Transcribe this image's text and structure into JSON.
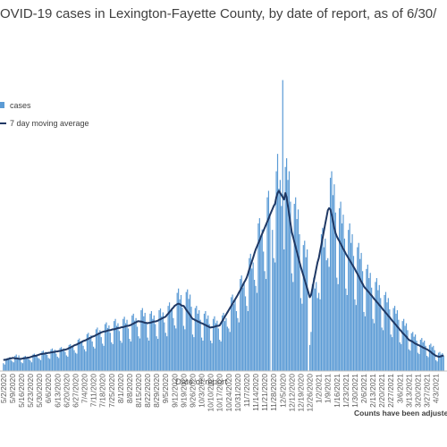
{
  "chart_data": {
    "type": "bar",
    "title": "OVID-19 cases in Lexington-Fayette County, by date of report, as of 6/30/",
    "x_label": "Date of report",
    "note": "Counts have been adjuste",
    "ylim": [
      0,
      700
    ],
    "categories": [
      "5/2/2020",
      null,
      null,
      null,
      null,
      null,
      null,
      "5/9/2020",
      null,
      null,
      null,
      null,
      null,
      null,
      "5/16/2020",
      null,
      null,
      null,
      null,
      null,
      null,
      "5/23/2020",
      null,
      null,
      null,
      null,
      null,
      null,
      "5/30/2020",
      null,
      null,
      null,
      null,
      null,
      null,
      "6/6/2020",
      null,
      null,
      null,
      null,
      null,
      null,
      "6/13/2020",
      null,
      null,
      null,
      null,
      null,
      null,
      "6/20/2020",
      null,
      null,
      null,
      null,
      null,
      null,
      "6/27/2020",
      null,
      null,
      null,
      null,
      null,
      null,
      "7/4/2020",
      null,
      null,
      null,
      null,
      null,
      null,
      "7/11/2020",
      null,
      null,
      null,
      null,
      null,
      null,
      "7/18/2020",
      null,
      null,
      null,
      null,
      null,
      null,
      "7/25/2020",
      null,
      null,
      null,
      null,
      null,
      null,
      "8/1/2020",
      null,
      null,
      null,
      null,
      null,
      null,
      "8/8/2020",
      null,
      null,
      null,
      null,
      null,
      null,
      "8/15/2020",
      null,
      null,
      null,
      null,
      null,
      null,
      "8/22/2020",
      null,
      null,
      null,
      null,
      null,
      null,
      "8/29/2020",
      null,
      null,
      null,
      null,
      null,
      null,
      "9/5/2020",
      null,
      null,
      null,
      null,
      null,
      null,
      "9/12/2020",
      null,
      null,
      null,
      null,
      null,
      null,
      "9/19/2020",
      null,
      null,
      null,
      null,
      null,
      null,
      "9/26/2020",
      null,
      null,
      null,
      null,
      null,
      null,
      "10/3/2020",
      null,
      null,
      null,
      null,
      null,
      null,
      "10/10/2020",
      null,
      null,
      null,
      null,
      null,
      null,
      "10/17/2020",
      null,
      null,
      null,
      null,
      null,
      null,
      "10/24/2020",
      null,
      null,
      null,
      null,
      null,
      null,
      "10/31/2020",
      null,
      null,
      null,
      null,
      null,
      null,
      "11/7/2020",
      null,
      null,
      null,
      null,
      null,
      null,
      "11/14/2020",
      null,
      null,
      null,
      null,
      null,
      null,
      "11/21/2020",
      null,
      null,
      null,
      null,
      null,
      null,
      "11/28/2020",
      null,
      null,
      null,
      null,
      null,
      null,
      "12/5/2020",
      null,
      null,
      null,
      null,
      null,
      null,
      "12/12/2020",
      null,
      null,
      null,
      null,
      null,
      null,
      "12/19/2020",
      null,
      null,
      null,
      null,
      null,
      null,
      "12/26/2020",
      null,
      null,
      null,
      null,
      null,
      null,
      "1/2/2021",
      null,
      null,
      null,
      null,
      null,
      null,
      "1/9/2021",
      null,
      null,
      null,
      null,
      null,
      null,
      "1/16/2021",
      null,
      null,
      null,
      null,
      null,
      null,
      "1/23/2021",
      null,
      null,
      null,
      null,
      null,
      null,
      "1/30/2021",
      null,
      null,
      null,
      null,
      null,
      null,
      "2/6/2021",
      null,
      null,
      null,
      null,
      null,
      null,
      "2/13/2021",
      null,
      null,
      null,
      null,
      null,
      null,
      "2/20/2021",
      null,
      null,
      null,
      null,
      null,
      null,
      "2/27/2021",
      null,
      null,
      null,
      null,
      null,
      null,
      "3/6/2021",
      null,
      null,
      null,
      null,
      null,
      null,
      "3/13/2021",
      null,
      null,
      null,
      null,
      null,
      null,
      "3/20/2021",
      null,
      null,
      null,
      null,
      null,
      null,
      "3/27/2021",
      null,
      null,
      null,
      null,
      null,
      null,
      "4/3/2021",
      null,
      null,
      null,
      null,
      null,
      null
    ],
    "series": [
      {
        "name": "cases",
        "type": "bar",
        "color": "#5b9bd5",
        "values": [
          18,
          15,
          28,
          30,
          27,
          32,
          25,
          22,
          20,
          35,
          38,
          30,
          36,
          29,
          20,
          18,
          33,
          35,
          30,
          32,
          27,
          24,
          20,
          38,
          40,
          35,
          37,
          30,
          28,
          25,
          45,
          47,
          40,
          44,
          37,
          30,
          28,
          50,
          52,
          46,
          49,
          40,
          33,
          30,
          53,
          55,
          50,
          52,
          44,
          36,
          33,
          60,
          62,
          55,
          58,
          48,
          42,
          40,
          72,
          75,
          65,
          70,
          58,
          50,
          45,
          85,
          88,
          78,
          82,
          68,
          56,
          52,
          96,
          100,
          88,
          94,
          78,
          63,
          58,
          108,
          112,
          99,
          105,
          88,
          66,
          62,
          115,
          120,
          104,
          110,
          92,
          70,
          65,
          120,
          125,
          110,
          118,
          98,
          74,
          68,
          128,
          132,
          116,
          122,
          102,
          80,
          75,
          140,
          145,
          126,
          134,
          112,
          77,
          70,
          132,
          138,
          120,
          128,
          108,
          80,
          74,
          140,
          144,
          126,
          135,
          112,
          88,
          80,
          150,
          158,
          138,
          146,
          122,
          105,
          98,
          180,
          190,
          165,
          175,
          146,
          104,
          96,
          182,
          188,
          166,
          176,
          148,
          84,
          78,
          145,
          150,
          132,
          140,
          118,
          77,
          70,
          132,
          138,
          120,
          128,
          108,
          70,
          64,
          120,
          126,
          110,
          116,
          98,
          72,
          68,
          128,
          134,
          115,
          122,
          102,
          98,
          90,
          170,
          176,
          154,
          164,
          138,
          122,
          112,
          212,
          220,
          192,
          205,
          172,
          150,
          138,
          260,
          270,
          236,
          250,
          210,
          196,
          180,
          340,
          352,
          308,
          326,
          275,
          230,
          212,
          400,
          415,
          362,
          0,
          325,
          260,
          250,
          460,
          500,
          420,
          440,
          380,
          670,
          280,
          470,
          490,
          440,
          460,
          390,
          225,
          205,
          385,
          400,
          350,
          372,
          315,
          168,
          155,
          290,
          300,
          262,
          280,
          0,
          60,
          90,
          200,
          215,
          190,
          205,
          168,
          180,
          165,
          315,
          330,
          285,
          305,
          255,
          260,
          240,
          445,
          460,
          405,
          430,
          365,
          215,
          200,
          375,
          390,
          340,
          360,
          305,
          190,
          175,
          325,
          340,
          295,
          315,
          265,
          165,
          152,
          285,
          295,
          258,
          272,
          230,
          136,
          126,
          235,
          245,
          214,
          226,
          192,
          120,
          110,
          205,
          214,
          186,
          198,
          168,
          100,
          94,
          175,
          182,
          158,
          168,
          142,
          84,
          78,
          145,
          150,
          132,
          140,
          118,
          66,
          62,
          115,
          120,
          104,
          110,
          94,
          50,
          47,
          87,
          90,
          79,
          84,
          70,
          42,
          39,
          72,
          76,
          66,
          70,
          58,
          35,
          32,
          60,
          63,
          55,
          58,
          48,
          25,
          22,
          42,
          44,
          38,
          41,
          34
        ]
      },
      {
        "name": "7 day moving average",
        "type": "line",
        "color": "#1f3864",
        "values": [
          25,
          26,
          26,
          27,
          28,
          29,
          29,
          30,
          30,
          29,
          29,
          29,
          28,
          28,
          28,
          29,
          29,
          30,
          30,
          31,
          31,
          32,
          33,
          34,
          35,
          35,
          36,
          37,
          38,
          39,
          39,
          40,
          40,
          41,
          41,
          42,
          42,
          43,
          43,
          44,
          44,
          45,
          45,
          46,
          46,
          47,
          48,
          49,
          49,
          50,
          51,
          53,
          54,
          56,
          57,
          59,
          60,
          61,
          63,
          64,
          66,
          67,
          69,
          70,
          71,
          73,
          74,
          76,
          77,
          79,
          80,
          81,
          83,
          84,
          86,
          87,
          89,
          90,
          91,
          91,
          92,
          93,
          94,
          94,
          95,
          96,
          96,
          97,
          98,
          99,
          99,
          100,
          101,
          101,
          102,
          103,
          104,
          104,
          105,
          106,
          108,
          109,
          111,
          112,
          114,
          115,
          114,
          114,
          113,
          112,
          111,
          111,
          110,
          111,
          111,
          112,
          113,
          114,
          114,
          115,
          116,
          118,
          119,
          121,
          122,
          124,
          125,
          129,
          132,
          136,
          139,
          143,
          146,
          150,
          152,
          154,
          155,
          154,
          152,
          150,
          150,
          146,
          141,
          137,
          133,
          129,
          124,
          120,
          119,
          117,
          116,
          114,
          113,
          111,
          110,
          109,
          107,
          106,
          104,
          103,
          101,
          100,
          101,
          101,
          102,
          103,
          104,
          104,
          105,
          110,
          115,
          120,
          125,
          130,
          135,
          140,
          145,
          150,
          155,
          160,
          165,
          170,
          175,
          181,
          186,
          192,
          198,
          204,
          209,
          215,
          224,
          234,
          243,
          252,
          261,
          271,
          280,
          287,
          294,
          301,
          309,
          316,
          323,
          330,
          337,
          344,
          351,
          359,
          366,
          373,
          380,
          385,
          400,
          410,
          415,
          410,
          405,
          400,
          395,
          410,
          400,
          380,
          360,
          340,
          320,
          309,
          297,
          286,
          274,
          263,
          251,
          240,
          230,
          220,
          210,
          200,
          190,
          180,
          170,
          175,
          190,
          205,
          220,
          235,
          250,
          260,
          276,
          291,
          307,
          323,
          339,
          354,
          370,
          375,
          372,
          360,
          345,
          330,
          318,
          310,
          304,
          299,
          293,
          287,
          281,
          276,
          270,
          265,
          260,
          255,
          250,
          245,
          240,
          235,
          229,
          224,
          218,
          212,
          206,
          201,
          195,
          191,
          188,
          184,
          181,
          177,
          174,
          170,
          166,
          163,
          159,
          156,
          152,
          149,
          145,
          141,
          138,
          134,
          131,
          127,
          124,
          120,
          116,
          113,
          109,
          106,
          102,
          99,
          95,
          92,
          88,
          85,
          82,
          79,
          75,
          72,
          70,
          69,
          67,
          65,
          63,
          62,
          60,
          59,
          57,
          56,
          54,
          53,
          51,
          50,
          48,
          46,
          44,
          41,
          39,
          37,
          35,
          34,
          33,
          33,
          34,
          35,
          36
        ]
      }
    ]
  }
}
